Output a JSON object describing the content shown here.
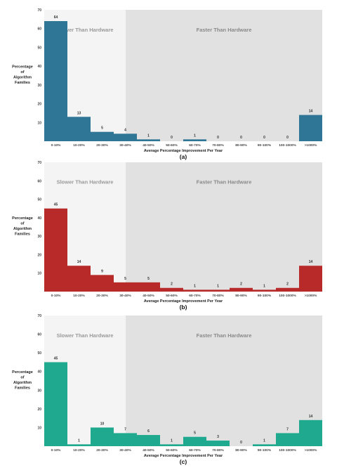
{
  "chart_data": [
    {
      "type": "bar",
      "panel_label": "(a)",
      "ylabel_lines": [
        "Percentage",
        "of",
        "Algorithm",
        "Families"
      ],
      "xlabel": "Average Percentage Improvement Per Year",
      "categories": [
        "0-10%",
        "10-20%",
        "20-30%",
        "30-40%",
        "40-50%",
        "50-60%",
        "60-70%",
        "70-80%",
        "80-90%",
        "90-100%",
        "100-1000%",
        ">1000%"
      ],
      "values": [
        64,
        13,
        5,
        4,
        1,
        0,
        1,
        0,
        0,
        0,
        0,
        14
      ],
      "value_labels": [
        "64",
        "13",
        "5",
        "4",
        "1",
        "0",
        "1",
        "0",
        "0",
        "0",
        "0",
        "14"
      ],
      "yticks": [
        "10",
        "20",
        "30",
        "40",
        "50",
        "60",
        "70"
      ],
      "ylim": [
        0,
        70
      ],
      "regions": {
        "slower": "Slower Than Hardware",
        "faster": "Faster Than Hardware"
      },
      "color": "#2e7596"
    },
    {
      "type": "bar",
      "panel_label": "(b)",
      "ylabel_lines": [
        "Percentage",
        "of",
        "Algorithm",
        "Families"
      ],
      "xlabel": "Average Percentage Improvement Per Year",
      "categories": [
        "0-10%",
        "10-20%",
        "20-30%",
        "30-40%",
        "40-50%",
        "50-60%",
        "60-70%",
        "70-80%",
        "80-90%",
        "90-100%",
        "100-1000%",
        ">1000%"
      ],
      "values": [
        45,
        14,
        9,
        5,
        5,
        2,
        1,
        1,
        2,
        1,
        2,
        14
      ],
      "value_labels": [
        "45",
        "14",
        "9",
        "5",
        "5",
        "2",
        "1",
        "1",
        "2",
        "1",
        "2",
        "14"
      ],
      "yticks": [
        "10",
        "20",
        "30",
        "40",
        "50",
        "60",
        "70"
      ],
      "ylim": [
        0,
        70
      ],
      "regions": {
        "slower": "Slower Than Hardware",
        "faster": "Faster Than Hardware"
      },
      "color": "#b82a2a"
    },
    {
      "type": "bar",
      "panel_label": "(c)",
      "ylabel_lines": [
        "Percentage",
        "of",
        "Algorithm",
        "Families"
      ],
      "xlabel": "Average Percentage Improvement Per Year",
      "categories": [
        "0-10%",
        "10-20%",
        "20-30%",
        "30-40%",
        "40-50%",
        "50-60%",
        "60-70%",
        "70-80%",
        "80-90%",
        "90-100%",
        "100-1000%",
        ">1000%"
      ],
      "values": [
        45,
        1,
        10,
        7,
        6,
        1,
        5,
        3,
        0,
        1,
        7,
        14
      ],
      "value_labels": [
        "45",
        "1",
        "10",
        "7",
        "6",
        "1",
        "5",
        "3",
        "0",
        "1",
        "7",
        "14"
      ],
      "yticks": [
        "10",
        "20",
        "30",
        "40",
        "50",
        "60",
        "70"
      ],
      "ylim": [
        0,
        70
      ],
      "regions": {
        "slower": "Slower Than Hardware",
        "faster": "Faster Than Hardware"
      },
      "color": "#1fa98e"
    }
  ]
}
